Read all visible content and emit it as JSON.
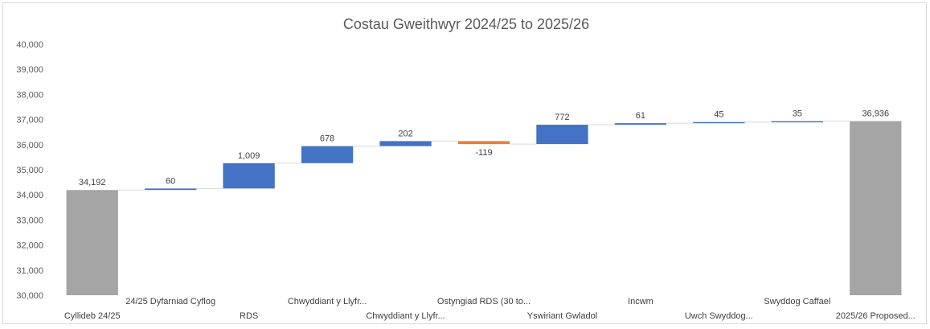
{
  "chart_data": {
    "type": "waterfall",
    "title": "Costau Gweithwyr 2024/25 to 2025/26",
    "ylim": [
      30000,
      40000
    ],
    "yticks": [
      "30,000",
      "31,000",
      "32,000",
      "33,000",
      "34,000",
      "35,000",
      "36,000",
      "37,000",
      "38,000",
      "39,000",
      "40,000"
    ],
    "grid": false,
    "colors": {
      "total": "#a5a5a5",
      "increase": "#4472c4",
      "decrease": "#ed7d31",
      "connector": "#d9d9d9"
    },
    "categories": [
      "Cyllideb 24/25",
      "24/25 Dyfarniad Cyflog",
      "RDS",
      "Chwyddiant y Llyfr...",
      "Chwyddiant y Llyfr...",
      "Ostyngiad RDS (30 to...",
      "Yswiriant Gwladol",
      "Incwm",
      "Uwch Swyddog...",
      "Swyddog Caffael",
      "2025/26 Proposed..."
    ],
    "values": [
      34192,
      60,
      1009,
      678,
      202,
      -119,
      772,
      61,
      45,
      35,
      36936
    ],
    "kinds": [
      "total",
      "change",
      "change",
      "change",
      "change",
      "change",
      "change",
      "change",
      "change",
      "change",
      "total"
    ],
    "labels": [
      "34,192",
      "60",
      "1,009",
      "678",
      "202",
      "-119",
      "772",
      "61",
      "45",
      "35",
      "36,936"
    ]
  }
}
